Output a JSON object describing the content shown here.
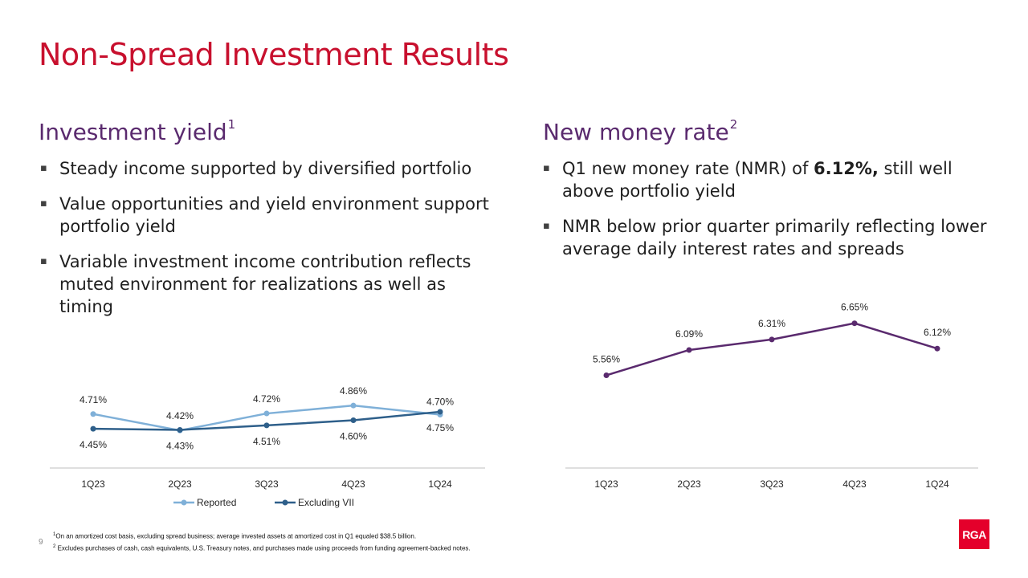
{
  "title": "Non-Spread Investment Results",
  "left": {
    "heading": "Investment yield",
    "heading_sup": "1",
    "bullets": [
      "Steady income supported by diversified portfolio",
      "Value opportunities and yield environment support portfolio yield",
      "Variable investment income contribution reflects muted environment for realizations as well as timing"
    ]
  },
  "right": {
    "heading": "New money rate",
    "heading_sup": "2",
    "bullet1_pre": "Q1 new money rate (NMR) of ",
    "bullet1_bold": "6.12%,",
    "bullet1_post": " still well above portfolio yield",
    "bullet2": "NMR below prior quarter primarily reflecting lower average daily interest rates and spreads"
  },
  "chart_data": [
    {
      "type": "line",
      "categories": [
        "1Q23",
        "2Q23",
        "3Q23",
        "4Q23",
        "1Q24"
      ],
      "series": [
        {
          "name": "Reported",
          "values": [
            4.71,
            4.42,
            4.72,
            4.86,
            4.7
          ],
          "labels": [
            "4.71%",
            "4.42%",
            "4.72%",
            "4.86%",
            "4.70%"
          ],
          "color": "#7fb0d8"
        },
        {
          "name": "Excluding VII",
          "values": [
            4.45,
            4.43,
            4.51,
            4.6,
            4.75
          ],
          "labels": [
            "4.45%",
            "4.43%",
            "4.51%",
            "4.60%",
            "4.75%"
          ],
          "color": "#2e5f8a"
        }
      ],
      "ylim": [
        3.8,
        5.5
      ],
      "legend": "bottom"
    },
    {
      "type": "line",
      "categories": [
        "1Q23",
        "2Q23",
        "3Q23",
        "4Q23",
        "1Q24"
      ],
      "series": [
        {
          "name": "New money rate",
          "values": [
            5.56,
            6.09,
            6.31,
            6.65,
            6.12
          ],
          "labels": [
            "5.56%",
            "6.09%",
            "6.31%",
            "6.65%",
            "6.12%"
          ],
          "color": "#5a2a6e"
        }
      ],
      "ylim": [
        3.6,
        7.2
      ],
      "legend": "none"
    }
  ],
  "footnotes": {
    "n1_mark": "1",
    "n1": "On an amortized cost basis, excluding spread business; average invested assets at amortized cost in Q1 equaled $38.5 billion.",
    "n2_mark": "2",
    "n2": " Excludes purchases of cash, cash equivalents, U.S. Treasury notes, and purchases made using proceeds from funding agreement-backed notes."
  },
  "page_number": "9",
  "logo_text": "RGA"
}
